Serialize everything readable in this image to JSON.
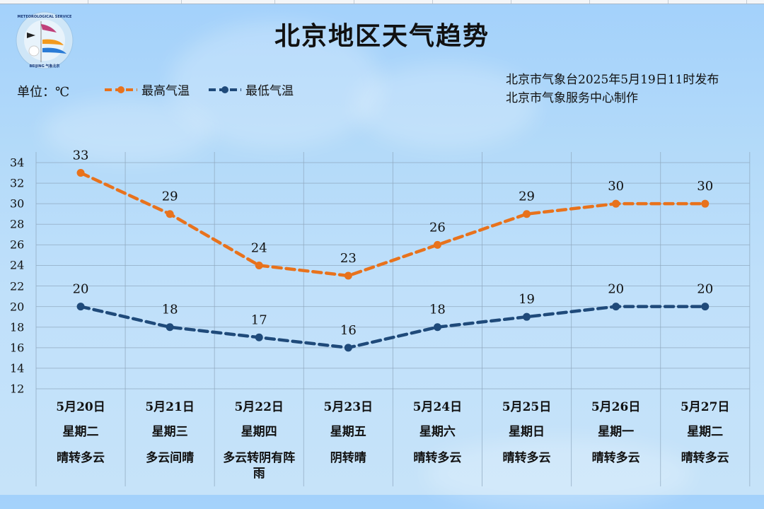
{
  "title": "北京地区天气趋势",
  "unit_label": "单位：℃",
  "legend": [
    {
      "label": "最高气温",
      "color": "#e8721c"
    },
    {
      "label": "最低气温",
      "color": "#1f4a7a"
    }
  ],
  "info": {
    "line1": "北京市气象台2025年5月19日11时发布",
    "line2": "北京市气象服务中心制作"
  },
  "logo": {
    "text_top": "METEOROLOGICAL SERVICE",
    "text_bottom": "BEIJING 气象北京"
  },
  "y_ticks": [
    "34",
    "32",
    "30",
    "28",
    "26",
    "24",
    "22",
    "20",
    "18",
    "16",
    "14",
    "12"
  ],
  "days": [
    {
      "date": "5月20日",
      "week": "星期二",
      "weather": "晴转多云"
    },
    {
      "date": "5月21日",
      "week": "星期三",
      "weather": "多云间晴"
    },
    {
      "date": "5月22日",
      "week": "星期四",
      "weather": "多云转阴有阵雨"
    },
    {
      "date": "5月23日",
      "week": "星期五",
      "weather": "阴转晴"
    },
    {
      "date": "5月24日",
      "week": "星期六",
      "weather": "晴转多云"
    },
    {
      "date": "5月25日",
      "week": "星期日",
      "weather": "晴转多云"
    },
    {
      "date": "5月26日",
      "week": "星期一",
      "weather": "晴转多云"
    },
    {
      "date": "5月27日",
      "week": "星期二",
      "weather": "晴转多云"
    }
  ],
  "chart_data": {
    "type": "line",
    "title": "北京地区天气趋势",
    "xlabel": "",
    "ylabel": "单位：℃",
    "categories": [
      "5月20日",
      "5月21日",
      "5月22日",
      "5月23日",
      "5月24日",
      "5月25日",
      "5月26日",
      "5月27日"
    ],
    "series": [
      {
        "name": "最高气温",
        "color": "#e8721c",
        "line_style": "dashed",
        "values": [
          33,
          29,
          24,
          23,
          26,
          29,
          30,
          30
        ]
      },
      {
        "name": "最低气温",
        "color": "#1f4a7a",
        "line_style": "dashed",
        "values": [
          20,
          18,
          17,
          16,
          18,
          19,
          20,
          20
        ]
      }
    ],
    "ylim": [
      12,
      34
    ],
    "y_tick_step": 2,
    "grid": true,
    "legend_position": "top-left",
    "data_labels": true
  }
}
